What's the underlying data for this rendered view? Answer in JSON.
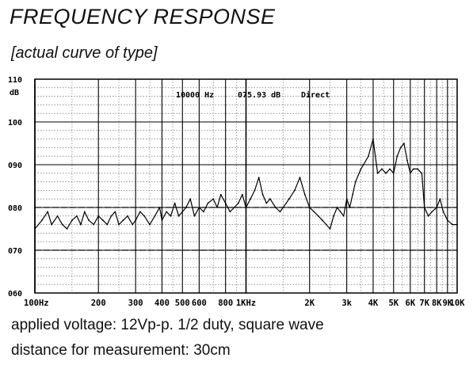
{
  "title": "FREQUENCY RESPONSE",
  "subtitle": "[actual curve of type]",
  "notes": {
    "voltage": "applied voltage: 12Vp-p. 1/2 duty, square wave",
    "distance": "distance for measurement: 30cm"
  },
  "chart_data": {
    "type": "line",
    "ylabel_unit": "dB",
    "ylim": [
      60,
      110
    ],
    "xlim": [
      100,
      10000
    ],
    "xscale": "log",
    "grid": true,
    "y_ticks": [
      {
        "value": 110,
        "label": "110"
      },
      {
        "value": 100,
        "label": "100"
      },
      {
        "value": 90,
        "label": "090"
      },
      {
        "value": 80,
        "label": "080"
      },
      {
        "value": 70,
        "label": "070"
      },
      {
        "value": 60,
        "label": "060"
      }
    ],
    "x_ticks": [
      {
        "value": 100,
        "label": "100Hz"
      },
      {
        "value": 200,
        "label": "200"
      },
      {
        "value": 300,
        "label": "300"
      },
      {
        "value": 400,
        "label": "400"
      },
      {
        "value": 500,
        "label": "500"
      },
      {
        "value": 600,
        "label": "600"
      },
      {
        "value": 800,
        "label": "800"
      },
      {
        "value": 1000,
        "label": "1KHz"
      },
      {
        "value": 2000,
        "label": "2K"
      },
      {
        "value": 3000,
        "label": "3k"
      },
      {
        "value": 4000,
        "label": "4K"
      },
      {
        "value": 5000,
        "label": "5K"
      },
      {
        "value": 6000,
        "label": "6K"
      },
      {
        "value": 7000,
        "label": "7K"
      },
      {
        "value": 8000,
        "label": "8K"
      },
      {
        "value": 9000,
        "label": "9K"
      },
      {
        "value": 10000,
        "label": "10K"
      }
    ],
    "readout": {
      "frequency": "10000 Hz",
      "level": "075.93 dB",
      "mode": "Direct"
    },
    "reference_levels": [
      80,
      70
    ],
    "series": [
      {
        "x": [
          100,
          108,
          115,
          120,
          128,
          135,
          142,
          150,
          158,
          165,
          172,
          180,
          190,
          200,
          210,
          220,
          230,
          240,
          250,
          262,
          275,
          290,
          300,
          315,
          330,
          350,
          370,
          390,
          400,
          420,
          440,
          460,
          480,
          500,
          520,
          545,
          570,
          600,
          630,
          660,
          700,
          730,
          760,
          800,
          840,
          880,
          920,
          960,
          1000,
          1050,
          1100,
          1150,
          1200,
          1250,
          1300,
          1380,
          1450,
          1500,
          1600,
          1700,
          1800,
          1900,
          2000,
          2100,
          2200,
          2300,
          2400,
          2500,
          2600,
          2700,
          2800,
          2900,
          3000,
          3100,
          3200,
          3300,
          3500,
          3600,
          3800,
          4000,
          4200,
          4400,
          4600,
          4800,
          5000,
          5200,
          5400,
          5600,
          5800,
          6000,
          6200,
          6500,
          6800,
          7000,
          7300,
          7600,
          8000,
          8300,
          8600,
          9000,
          9500,
          10000
        ],
        "y": [
          75,
          77,
          79,
          76,
          78,
          76,
          75,
          77,
          78,
          76,
          79,
          77,
          76,
          78,
          77,
          76,
          78,
          79,
          76,
          77,
          78,
          76,
          77,
          79,
          78,
          76,
          78,
          80,
          77,
          79,
          78,
          81,
          78,
          79,
          80,
          82,
          78,
          80,
          79,
          81,
          82,
          80,
          83,
          81,
          79,
          80,
          81,
          83,
          80,
          82,
          84,
          87,
          83,
          81,
          82,
          80,
          79,
          80,
          82,
          84,
          87,
          83,
          80,
          79,
          78,
          77,
          76,
          75,
          78,
          80,
          79,
          78,
          82,
          80,
          83,
          86,
          89,
          90,
          92,
          96,
          88,
          89,
          88,
          89,
          88,
          92,
          94,
          95,
          91,
          88,
          89,
          89,
          88,
          80,
          78,
          79,
          80,
          82,
          79,
          77,
          76,
          76
        ]
      }
    ]
  }
}
